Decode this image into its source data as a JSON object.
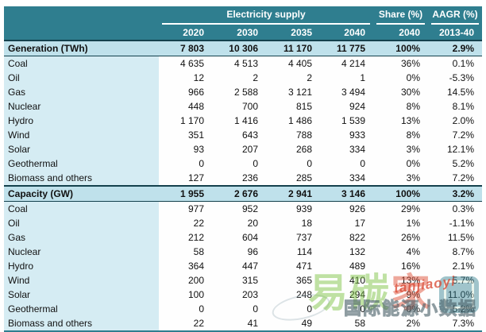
{
  "table": {
    "group_headers": [
      {
        "label": "Electricity supply"
      },
      {
        "label": "Share (%)"
      },
      {
        "label": "AAGR (%)"
      }
    ],
    "col_headers": [
      "2020",
      "2030",
      "2035",
      "2040",
      "2040",
      "2013-40"
    ],
    "sections": [
      {
        "header": {
          "label": "Generation (TWh)",
          "values": [
            "7 803",
            "10 306",
            "11 170",
            "11 775",
            "100%",
            "2.9%"
          ]
        },
        "rows": [
          {
            "label": "Coal",
            "values": [
              "4 635",
              "4 513",
              "4 405",
              "4 214",
              "36%",
              "0.1%"
            ]
          },
          {
            "label": "Oil",
            "values": [
              "12",
              "2",
              "2",
              "1",
              "0%",
              "-5.3%"
            ]
          },
          {
            "label": "Gas",
            "values": [
              "966",
              "2 588",
              "3 121",
              "3 494",
              "30%",
              "14.5%"
            ]
          },
          {
            "label": "Nuclear",
            "values": [
              "448",
              "700",
              "815",
              "924",
              "8%",
              "8.1%"
            ]
          },
          {
            "label": "Hydro",
            "values": [
              "1 170",
              "1 416",
              "1 486",
              "1 539",
              "13%",
              "2.0%"
            ]
          },
          {
            "label": "Wind",
            "values": [
              "351",
              "643",
              "788",
              "933",
              "8%",
              "7.2%"
            ]
          },
          {
            "label": "Solar",
            "values": [
              "93",
              "207",
              "268",
              "334",
              "3%",
              "12.1%"
            ]
          },
          {
            "label": "Geothermal",
            "values": [
              "0",
              "0",
              "0",
              "0",
              "0%",
              "5.2%"
            ]
          },
          {
            "label": "Biomass and others",
            "values": [
              "127",
              "236",
              "285",
              "334",
              "3%",
              "7.2%"
            ]
          }
        ]
      },
      {
        "header": {
          "label": "Capacity (GW)",
          "values": [
            "1 955",
            "2 676",
            "2 941",
            "3 146",
            "100%",
            "3.2%"
          ]
        },
        "rows": [
          {
            "label": "Coal",
            "values": [
              "977",
              "952",
              "939",
              "926",
              "29%",
              "0.3%"
            ]
          },
          {
            "label": "Oil",
            "values": [
              "22",
              "20",
              "18",
              "17",
              "1%",
              "-1.1%"
            ]
          },
          {
            "label": "Gas",
            "values": [
              "212",
              "604",
              "737",
              "822",
              "26%",
              "11.5%"
            ]
          },
          {
            "label": "Nuclear",
            "values": [
              "58",
              "96",
              "114",
              "132",
              "4%",
              "8.7%"
            ]
          },
          {
            "label": "Hydro",
            "values": [
              "364",
              "447",
              "471",
              "489",
              "16%",
              "2.1%"
            ]
          },
          {
            "label": "Wind",
            "values": [
              "200",
              "315",
              "365",
              "410",
              "13%",
              "5.7%"
            ]
          },
          {
            "label": "Solar",
            "values": [
              "100",
              "203",
              "248",
              "294",
              "9%",
              "11.0%"
            ]
          },
          {
            "label": "Geothermal",
            "values": [
              "0",
              "0",
              "0",
              "0",
              "0%",
              "5.2%"
            ]
          },
          {
            "label": "Biomass and others",
            "values": [
              "22",
              "41",
              "49",
              "58",
              "2%",
              "7.3%"
            ]
          }
        ]
      }
    ]
  },
  "watermark": {
    "brand_text_green": "易碳",
    "brand_text_red": "家",
    "brand_latin": "tanjiaoyi",
    "overlay_text": "国际能源小数据"
  },
  "colors": {
    "header_teal": "#2F7E8F",
    "section_row_blue": "#BFE1EB",
    "label_column_blue": "#D5ECF3",
    "dark_border": "#14414D",
    "watermark_green": "#7CC242",
    "watermark_red": "#E0543C",
    "watermark_gray": "#5E7880"
  }
}
